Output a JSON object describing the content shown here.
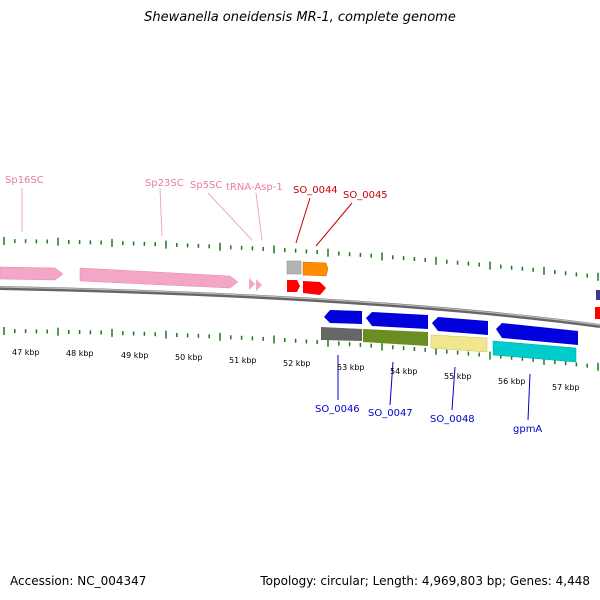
{
  "title": "Shewanella oneidensis MR-1, complete genome",
  "accession": "Accession: NC_004347",
  "summary": "Topology: circular; Length: 4,969,803 bp; Genes: 4,448",
  "colors": {
    "backbone": "#888888",
    "tick": "#1a7a1a",
    "rna": "#f4a6c6",
    "rna_label": "#e87aa8",
    "forward_label": "#cc0000",
    "reverse_label": "#0000cc",
    "red": "#ff0000",
    "orange": "#ff8c00",
    "gray": "#b4b4b4",
    "blue": "#0000dd",
    "darkgray": "#666666",
    "olive": "#6b8e23",
    "khaki": "#f0e68c",
    "cyan": "#00cccc"
  },
  "ruler": {
    "labels": [
      "47 kbp",
      "48 kbp",
      "49 kbp",
      "50 kbp",
      "51 kbp",
      "52 kbp",
      "53 kbp",
      "54 kbp",
      "55 kbp",
      "56 kbp",
      "57 kbp"
    ]
  },
  "labels": {
    "sp16sc": "Sp16SC",
    "sp23sc": "Sp23SC",
    "sp5sc": "Sp5SC",
    "trna_asp": "tRNA-Asp-1",
    "so_0044": "SO_0044",
    "so_0045": "SO_0045",
    "so_0046": "SO_0046",
    "so_0047": "SO_0047",
    "so_0048": "SO_0048",
    "gpma": "gpmA"
  }
}
